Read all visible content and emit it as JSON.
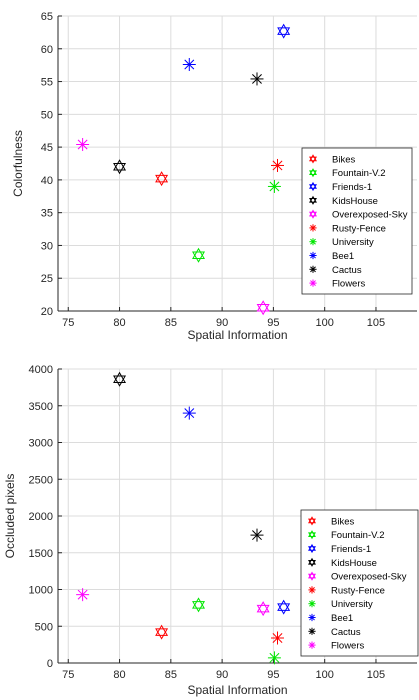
{
  "chart_data": [
    {
      "type": "scatter",
      "title": "",
      "xlabel": "Spatial Information",
      "ylabel": "Colorfulness",
      "xlim": [
        74,
        109
      ],
      "ylim": [
        20,
        65
      ],
      "xticks": [
        75,
        80,
        85,
        90,
        95,
        100,
        105
      ],
      "yticks": [
        20,
        25,
        30,
        35,
        40,
        45,
        50,
        55,
        60,
        65
      ],
      "grid": true,
      "legend_position": "bottom-right",
      "series": [
        {
          "name": "Bikes",
          "marker": "hexagram",
          "color": "#ff0000",
          "x": 84.1,
          "y": 40.2
        },
        {
          "name": "Fountain-V.2",
          "marker": "hexagram",
          "color": "#00e600",
          "x": 87.7,
          "y": 28.5
        },
        {
          "name": "Friends-1",
          "marker": "hexagram",
          "color": "#0000ff",
          "x": 96.0,
          "y": 62.7
        },
        {
          "name": "KidsHouse",
          "marker": "hexagram",
          "color": "#000000",
          "x": 80.0,
          "y": 42.0
        },
        {
          "name": "Overexposed-Sky",
          "marker": "hexagram",
          "color": "#ff00ff",
          "x": 94.0,
          "y": 20.5
        },
        {
          "name": "Rusty-Fence",
          "marker": "asterisk",
          "color": "#ff0000",
          "x": 95.4,
          "y": 42.2
        },
        {
          "name": "University",
          "marker": "asterisk",
          "color": "#00e600",
          "x": 95.1,
          "y": 39.0
        },
        {
          "name": "Bee1",
          "marker": "asterisk",
          "color": "#0000ff",
          "x": 86.8,
          "y": 57.6
        },
        {
          "name": "Cactus",
          "marker": "asterisk",
          "color": "#000000",
          "x": 93.4,
          "y": 55.4
        },
        {
          "name": "Flowers",
          "marker": "asterisk",
          "color": "#ff00ff",
          "x": 76.4,
          "y": 45.4
        }
      ]
    },
    {
      "type": "scatter",
      "title": "",
      "xlabel": "Spatial Information",
      "ylabel": "Occluded pixels",
      "xlim": [
        74,
        109
      ],
      "ylim": [
        0,
        4000
      ],
      "xticks": [
        75,
        80,
        85,
        90,
        95,
        100,
        105
      ],
      "yticks": [
        0,
        500,
        1000,
        1500,
        2000,
        2500,
        3000,
        3500,
        4000
      ],
      "grid": true,
      "legend_position": "bottom-right",
      "series": [
        {
          "name": "Bikes",
          "marker": "hexagram",
          "color": "#ff0000",
          "x": 84.1,
          "y": 420
        },
        {
          "name": "Fountain-V.2",
          "marker": "hexagram",
          "color": "#00e600",
          "x": 87.7,
          "y": 790
        },
        {
          "name": "Friends-1",
          "marker": "hexagram",
          "color": "#0000ff",
          "x": 96.0,
          "y": 760
        },
        {
          "name": "KidsHouse",
          "marker": "hexagram",
          "color": "#000000",
          "x": 80.0,
          "y": 3860
        },
        {
          "name": "Overexposed-Sky",
          "marker": "hexagram",
          "color": "#ff00ff",
          "x": 94.0,
          "y": 740
        },
        {
          "name": "Rusty-Fence",
          "marker": "asterisk",
          "color": "#ff0000",
          "x": 95.4,
          "y": 340
        },
        {
          "name": "University",
          "marker": "asterisk",
          "color": "#00e600",
          "x": 95.1,
          "y": 70
        },
        {
          "name": "Bee1",
          "marker": "asterisk",
          "color": "#0000ff",
          "x": 86.8,
          "y": 3400
        },
        {
          "name": "Cactus",
          "marker": "asterisk",
          "color": "#000000",
          "x": 93.4,
          "y": 1740
        },
        {
          "name": "Flowers",
          "marker": "asterisk",
          "color": "#ff00ff",
          "x": 76.4,
          "y": 930
        }
      ]
    }
  ]
}
